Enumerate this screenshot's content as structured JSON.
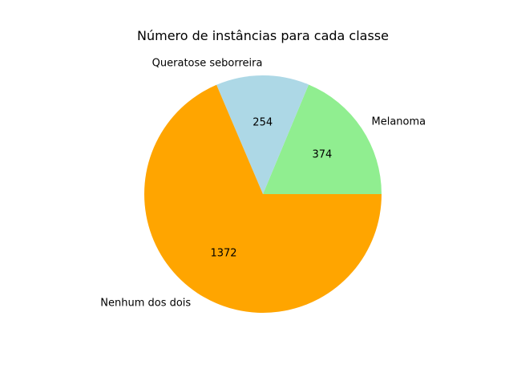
{
  "chart_data": {
    "type": "pie",
    "title": "Número de instâncias para cada classe",
    "slices": [
      {
        "label": "Melanoma",
        "value": 374,
        "value_label": "374",
        "color": "#90ee90"
      },
      {
        "label": "Queratose seborreira",
        "value": 254,
        "value_label": "254",
        "color": "#add8e6"
      },
      {
        "label": "Nenhum dos dois",
        "value": 1372,
        "value_label": "1372",
        "color": "#ffa500"
      }
    ],
    "start_angle_deg": 0,
    "direction": "counterclockwise"
  }
}
